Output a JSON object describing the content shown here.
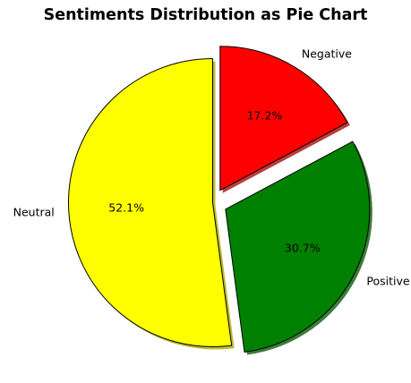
{
  "chart_data": {
    "type": "pie",
    "title": "Sentiments Distribution as Pie Chart",
    "slices": [
      {
        "label": "Neutral",
        "percent": 52.1,
        "pct_label": "52.1%",
        "color": "#ffff00",
        "explode": 0
      },
      {
        "label": "Positive",
        "percent": 30.7,
        "pct_label": "30.7%",
        "color": "#008000",
        "explode": 0.1
      },
      {
        "label": "Negative",
        "percent": 17.2,
        "pct_label": "17.2%",
        "color": "#ff0000",
        "explode": 0.1
      }
    ],
    "start_angle_deg": 90,
    "direction": "counterclockwise",
    "shadow": true,
    "edge_color": "#000000"
  }
}
